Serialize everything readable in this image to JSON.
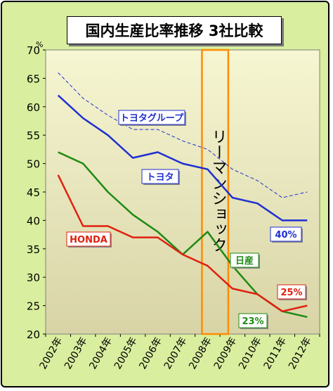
{
  "chart_data": {
    "type": "line",
    "title": "国内生産比率推移 3社比較",
    "ylabel": "%",
    "ylim": [
      20,
      70
    ],
    "yticks": [
      20,
      25,
      30,
      35,
      40,
      45,
      50,
      55,
      60,
      65,
      70
    ],
    "grid": false,
    "categories": [
      "2002年",
      "2003年",
      "2004年",
      "2005年",
      "2006年",
      "2007年",
      "2008年",
      "2009年",
      "2010年",
      "2011年",
      "2012年"
    ],
    "series": [
      {
        "name": "トヨタグループ",
        "color": "#1f2fd0",
        "dashed": true,
        "values": [
          66,
          61.5,
          58.5,
          56,
          56,
          54,
          52.5,
          49,
          47,
          44,
          45
        ]
      },
      {
        "name": "トヨタ",
        "color": "#1f2fd0",
        "dashed": false,
        "values": [
          62,
          58,
          55,
          51,
          52,
          50,
          49,
          44,
          43,
          40,
          40
        ]
      },
      {
        "name": "日産",
        "color": "#1e8a14",
        "dashed": false,
        "values": [
          52,
          50,
          45,
          41,
          38,
          34,
          38,
          32,
          27,
          24,
          23
        ]
      },
      {
        "name": "HONDA",
        "color": "#e0200f",
        "dashed": false,
        "values": [
          48,
          39,
          39,
          37,
          37,
          34,
          32,
          28,
          27,
          24,
          25
        ]
      }
    ],
    "annotations": [
      {
        "text": "リーマンショック",
        "color": "#ff8c00"
      },
      {
        "text": "40%",
        "color": "#1f2fd0"
      },
      {
        "text": "25%",
        "color": "#e0200f"
      },
      {
        "text": "23%",
        "color": "#1e8a14"
      }
    ]
  }
}
